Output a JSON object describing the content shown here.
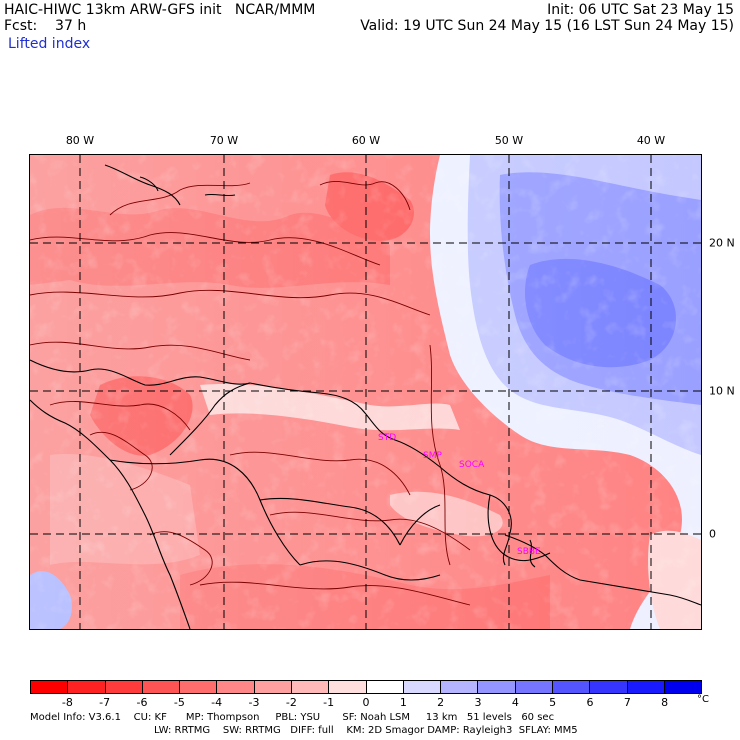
{
  "header": {
    "model_title": "HAIC-HIWC 13km ARW-GFS init   NCAR/MMM",
    "forecast": "Fcst:    37 h",
    "field_name": "Lifted index",
    "init_time": "Init: 06 UTC Sat 23 May 15",
    "valid_time": "Valid: 19 UTC Sun 24 May 15 (16 LST Sun 24 May 15)"
  },
  "longitude_labels": [
    "80 W",
    "70 W",
    "60 W",
    "50 W",
    "40 W"
  ],
  "latitude_labels": [
    "20 N",
    "10 N",
    "0"
  ],
  "stations": [
    "STD",
    "SMP",
    "SOCA",
    "SBBE"
  ],
  "colorbar": {
    "tick_labels": [
      "-8",
      "-7",
      "-6",
      "-5",
      "-4",
      "-3",
      "-2",
      "-1",
      "0",
      "1",
      "2",
      "3",
      "4",
      "5",
      "6",
      "7",
      "8"
    ],
    "unit": "°C",
    "colors": [
      "#ff0000",
      "#ff2222",
      "#ff3b3b",
      "#ff5454",
      "#ff6d6d",
      "#ff8787",
      "#ffa0a0",
      "#ffb9b9",
      "#ffdede",
      "#ffffff",
      "#d9d9ff",
      "#b5b5ff",
      "#9595ff",
      "#7575ff",
      "#5555ff",
      "#3535ff",
      "#1a1aff",
      "#0000ee"
    ]
  },
  "footer": {
    "line1": "Model Info: V3.6.1    CU: KF      MP: Thompson     PBL: YSU       SF: Noah LSM     13 km   51 levels   60 sec",
    "line2": "LW: RRTMG    SW: RRTMG   DIFF: full    KM: 2D Smagor DAMP: Rayleigh3  SFLAY: MM5"
  }
}
